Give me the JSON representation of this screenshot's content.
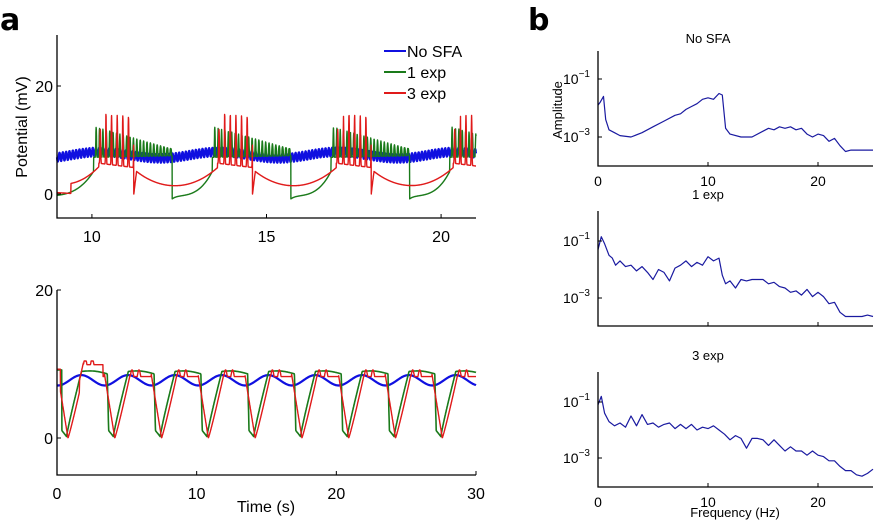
{
  "panel_letters": {
    "a": "a",
    "b": "b"
  },
  "colors": {
    "no_sfa": "#1010e0",
    "one_exp": "#1a7a1a",
    "three_exp": "#e01a1a",
    "spectrum": "#1a1aa0"
  },
  "chart_data": [
    {
      "id": "a-top",
      "type": "line",
      "title": "",
      "xlabel": "",
      "ylabel": "Potential (mV)",
      "xlim": [
        9,
        21
      ],
      "ylim": [
        -3,
        30
      ],
      "xticks": [
        10,
        15,
        20
      ],
      "xtick_labels": [
        "10",
        "15",
        "20"
      ],
      "yticks": [
        0,
        20
      ],
      "ytick_labels": [
        "0",
        "20"
      ],
      "legend": {
        "placement": "top-right",
        "entries": [
          "No SFA",
          "1 exp",
          "3 exp"
        ]
      },
      "series": [
        {
          "name": "No SFA",
          "model": "oscillation",
          "baseline_mV": 7.2,
          "osc_amplitude_mV": 0.8,
          "osc_freq_hz": 10.5,
          "slow_modulation_mV": 0.6,
          "slow_period_s": 3.4
        },
        {
          "name": "1 exp",
          "model": "bursting",
          "burst_starts_s": [
            10.05,
            13.45,
            16.85,
            20.25
          ],
          "burst_end_s": [
            12.3,
            15.7,
            19.1
          ],
          "rest_mV": -0.3,
          "spike_peak_mV": 12.5,
          "plateau_mV": 9.0
        },
        {
          "name": "3 exp",
          "model": "bursting",
          "burst_starts_s": [
            10.2,
            13.6,
            17.0,
            20.35
          ],
          "spike_count": 6,
          "spike_peak_mV": 15.0,
          "after_burst_mV": 4.6,
          "rest_mV": 0.0
        }
      ]
    },
    {
      "id": "a-bottom",
      "type": "line",
      "title": "",
      "xlabel": "Time (s)",
      "ylabel": "",
      "xlim": [
        0,
        30
      ],
      "ylim": [
        -5,
        20
      ],
      "xticks": [
        0,
        10,
        20,
        30
      ],
      "xtick_labels": [
        "0",
        "10",
        "20",
        "30"
      ],
      "yticks": [
        0,
        20
      ],
      "ytick_labels": [
        "0",
        "20"
      ],
      "series": [
        {
          "name": "No SFA",
          "model": "sine",
          "mean_mV": 7.8,
          "amplitude_mV": 0.7,
          "period_s": 3.35
        },
        {
          "name": "1 exp",
          "model": "up-down",
          "period_s": 3.35,
          "up_mV": 9.0,
          "down_mV": 0.2
        },
        {
          "name": "3 exp",
          "model": "up-down",
          "period_s": 3.35,
          "up_mV": 8.6,
          "down_mV": 0.0,
          "first_peak_mV": 10.4
        }
      ]
    },
    {
      "id": "b-1",
      "type": "line",
      "title": "No SFA",
      "xlabel": "",
      "ylabel": "Amplitude",
      "xlim": [
        0,
        25
      ],
      "ylim_log10": [
        -4.0,
        -0.2
      ],
      "xticks": [
        0,
        10,
        20
      ],
      "xtick_labels": [
        "0",
        "10",
        "20"
      ],
      "yticks_log10": [
        -1,
        -3
      ],
      "ytick_labels": [
        "10^-1",
        "10^-3"
      ],
      "series": [
        {
          "name": "No SFA spectrum",
          "x": [
            0,
            0.2,
            0.5,
            0.7,
            1.0,
            1.5,
            2.0,
            3.0,
            4.0,
            5.0,
            6.0,
            7.0,
            7.5,
            8.0,
            8.5,
            9.0,
            9.5,
            10.0,
            10.5,
            11.0,
            11.3,
            11.6,
            12.0,
            13.0,
            14.0,
            15.0,
            15.5,
            16.0,
            16.5,
            17.0,
            17.5,
            18.0,
            18.5,
            19.0,
            19.5,
            20.0,
            20.5,
            21.0,
            21.5,
            22.0,
            22.5,
            23.0,
            24.0,
            25.0
          ],
          "log10_y": [
            -1.9,
            -1.8,
            -1.6,
            -2.4,
            -2.75,
            -2.85,
            -2.95,
            -3.0,
            -2.85,
            -2.65,
            -2.45,
            -2.25,
            -2.2,
            -2.05,
            -1.95,
            -1.85,
            -1.7,
            -1.65,
            -1.7,
            -1.5,
            -1.55,
            -2.7,
            -2.9,
            -3.0,
            -3.0,
            -2.8,
            -2.7,
            -2.75,
            -2.65,
            -2.7,
            -2.65,
            -2.75,
            -2.7,
            -2.9,
            -3.0,
            -2.9,
            -2.95,
            -3.15,
            -3.05,
            -3.3,
            -3.5,
            -3.45,
            -3.45,
            -3.45
          ]
        }
      ]
    },
    {
      "id": "b-2",
      "type": "line",
      "title": "1 exp",
      "xlabel": "",
      "ylabel": "",
      "xlim": [
        0,
        25
      ],
      "ylim_log10": [
        -4.0,
        -0.2
      ],
      "xticks": [
        0,
        10,
        20
      ],
      "xtick_labels": [
        "",
        "",
        ""
      ],
      "yticks_log10": [
        -1,
        -3
      ],
      "ytick_labels": [
        "10^-1",
        "10^-3"
      ],
      "series": [
        {
          "name": "1 exp spectrum",
          "x": [
            0,
            0.3,
            0.6,
            1.0,
            1.3,
            1.6,
            2.0,
            2.5,
            3.0,
            3.5,
            4.0,
            4.5,
            5.0,
            5.5,
            6.0,
            6.5,
            7.0,
            7.5,
            8.0,
            8.5,
            9.0,
            9.5,
            10.0,
            10.5,
            11.0,
            11.3,
            11.6,
            12.0,
            12.5,
            13.0,
            13.5,
            14.0,
            14.5,
            15.0,
            15.5,
            16.0,
            16.5,
            17.0,
            17.5,
            18.0,
            18.5,
            19.0,
            19.5,
            20.0,
            20.5,
            21.0,
            21.5,
            22.0,
            22.5,
            23.0,
            24.0,
            24.5,
            25.0
          ],
          "log10_y": [
            -1.3,
            -0.85,
            -1.1,
            -1.5,
            -1.6,
            -1.85,
            -1.7,
            -1.9,
            -1.85,
            -2.05,
            -1.9,
            -2.1,
            -2.35,
            -2.0,
            -2.1,
            -2.4,
            -1.95,
            -1.85,
            -1.7,
            -1.9,
            -1.75,
            -1.85,
            -1.55,
            -1.7,
            -1.6,
            -2.2,
            -2.5,
            -2.4,
            -2.65,
            -2.35,
            -2.4,
            -2.35,
            -2.35,
            -2.35,
            -2.5,
            -2.45,
            -2.6,
            -2.65,
            -2.8,
            -2.75,
            -2.9,
            -2.7,
            -2.95,
            -2.8,
            -2.95,
            -3.2,
            -3.15,
            -3.5,
            -3.65,
            -3.65,
            -3.65,
            -3.6,
            -3.65
          ]
        }
      ]
    },
    {
      "id": "b-3",
      "type": "line",
      "title": "3 exp",
      "xlabel": "Frequency (Hz)",
      "ylabel": "",
      "xlim": [
        0,
        25
      ],
      "ylim_log10": [
        -4.0,
        -0.2
      ],
      "xticks": [
        0,
        10,
        20
      ],
      "xtick_labels": [
        "0",
        "10",
        "20"
      ],
      "yticks_log10": [
        -1,
        -3
      ],
      "ytick_labels": [
        "10^-1",
        "10^-3"
      ],
      "series": [
        {
          "name": "3 exp spectrum",
          "x": [
            0,
            0.3,
            0.6,
            1.0,
            1.5,
            2.0,
            2.5,
            3.0,
            3.5,
            4.0,
            4.5,
            5.0,
            5.5,
            6.0,
            6.5,
            7.0,
            7.5,
            8.0,
            8.5,
            9.0,
            9.5,
            10.0,
            10.5,
            11.0,
            11.5,
            12.0,
            12.5,
            13.0,
            13.5,
            14.0,
            14.5,
            15.0,
            15.5,
            16.0,
            16.5,
            17.0,
            17.5,
            18.0,
            18.5,
            19.0,
            19.5,
            20.0,
            20.5,
            21.0,
            21.5,
            22.0,
            22.5,
            23.0,
            23.5,
            24.0,
            24.5,
            25.0
          ],
          "log10_y": [
            -1.1,
            -0.8,
            -1.4,
            -1.7,
            -1.85,
            -1.75,
            -1.9,
            -1.5,
            -1.85,
            -1.45,
            -1.8,
            -1.75,
            -1.9,
            -1.8,
            -1.75,
            -1.95,
            -1.8,
            -1.95,
            -1.8,
            -2.0,
            -1.9,
            -1.95,
            -1.85,
            -2.0,
            -2.15,
            -2.35,
            -2.2,
            -2.3,
            -2.65,
            -2.3,
            -2.3,
            -2.35,
            -2.55,
            -2.35,
            -2.55,
            -2.75,
            -2.6,
            -2.75,
            -2.75,
            -2.9,
            -2.75,
            -2.9,
            -2.95,
            -3.1,
            -3.1,
            -3.3,
            -3.45,
            -3.45,
            -3.6,
            -3.65,
            -3.55,
            -3.4
          ]
        }
      ]
    }
  ]
}
